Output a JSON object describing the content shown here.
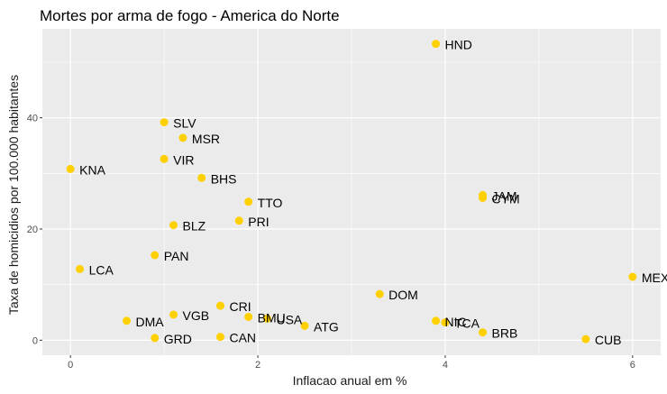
{
  "chart_data": {
    "type": "scatter",
    "title": "Mortes por arma de fogo - America do Norte",
    "xlabel": "Inflacao anual em %",
    "ylabel": "Taxa de homicidios por 100.000 habitantes",
    "xlim": [
      -0.3,
      6.3
    ],
    "ylim": [
      -2.7,
      56
    ],
    "x_ticks": [
      0,
      2,
      4,
      6
    ],
    "y_ticks": [
      0,
      20,
      40
    ],
    "grid": true,
    "point_color": "#FFD000",
    "panel_color": "#EBEBEB",
    "points": [
      {
        "label": "HND",
        "x": 3.9,
        "y": 53.3
      },
      {
        "label": "SLV",
        "x": 1.0,
        "y": 39.2
      },
      {
        "label": "MSR",
        "x": 1.2,
        "y": 36.4
      },
      {
        "label": "VIR",
        "x": 1.0,
        "y": 32.6
      },
      {
        "label": "KNA",
        "x": 0.0,
        "y": 30.8
      },
      {
        "label": "BHS",
        "x": 1.4,
        "y": 29.2
      },
      {
        "label": "JAM",
        "x": 4.4,
        "y": 26.1
      },
      {
        "label": "CYM",
        "x": 4.4,
        "y": 25.6
      },
      {
        "label": "TTO",
        "x": 1.9,
        "y": 24.9
      },
      {
        "label": "PRI",
        "x": 1.8,
        "y": 21.5
      },
      {
        "label": "BLZ",
        "x": 1.1,
        "y": 20.7
      },
      {
        "label": "PAN",
        "x": 0.9,
        "y": 15.3
      },
      {
        "label": "LCA",
        "x": 0.1,
        "y": 12.8
      },
      {
        "label": "MEX",
        "x": 6.0,
        "y": 11.4
      },
      {
        "label": "DOM",
        "x": 3.3,
        "y": 8.3
      },
      {
        "label": "CRI",
        "x": 1.6,
        "y": 6.2
      },
      {
        "label": "VGB",
        "x": 1.1,
        "y": 4.6
      },
      {
        "label": "BMU",
        "x": 1.9,
        "y": 4.2
      },
      {
        "label": "USA",
        "x": 2.1,
        "y": 3.9
      },
      {
        "label": "DMA",
        "x": 0.6,
        "y": 3.5
      },
      {
        "label": "NIC",
        "x": 3.9,
        "y": 3.5
      },
      {
        "label": "TCA",
        "x": 4.0,
        "y": 3.2
      },
      {
        "label": "ATG",
        "x": 2.5,
        "y": 2.6
      },
      {
        "label": "BRB",
        "x": 4.4,
        "y": 1.4
      },
      {
        "label": "GRD",
        "x": 0.9,
        "y": 0.4
      },
      {
        "label": "CAN",
        "x": 1.6,
        "y": 0.6
      },
      {
        "label": "CUB",
        "x": 5.5,
        "y": 0.2
      }
    ]
  }
}
